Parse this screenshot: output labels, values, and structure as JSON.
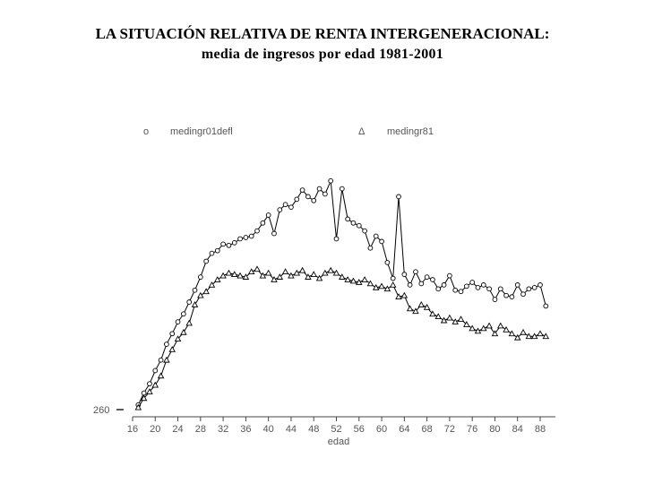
{
  "title": "LA SITUACIÓN RELATIVA DE RENTA INTERGENERACIONAL:",
  "subtitle": "media de ingresos por edad 1981-2001",
  "chart_data": {
    "type": "line",
    "xlabel": "edad",
    "ylabel": "",
    "x_ticks": [
      16,
      20,
      24,
      28,
      32,
      36,
      40,
      44,
      48,
      52,
      56,
      60,
      64,
      68,
      72,
      76,
      80,
      84,
      88
    ],
    "y_ticks": [
      260
    ],
    "xlim": [
      15,
      90
    ],
    "ylim": [
      230,
      2250
    ],
    "legend_position": "top",
    "grid": false,
    "series": [
      {
        "name": "medingr01defl",
        "marker": "circle",
        "color": "#000000",
        "x": [
          17,
          18,
          19,
          20,
          21,
          22,
          23,
          24,
          25,
          26,
          27,
          28,
          29,
          30,
          31,
          32,
          33,
          34,
          35,
          36,
          37,
          38,
          39,
          40,
          41,
          42,
          43,
          44,
          45,
          46,
          47,
          48,
          49,
          50,
          51,
          52,
          53,
          54,
          55,
          56,
          57,
          58,
          59,
          60,
          61,
          62,
          63,
          64,
          65,
          66,
          67,
          68,
          69,
          70,
          71,
          72,
          73,
          74,
          75,
          76,
          77,
          78,
          79,
          80,
          81,
          82,
          83,
          84,
          85,
          86,
          87,
          88,
          89
        ],
        "y": [
          300,
          390,
          460,
          560,
          640,
          760,
          840,
          930,
          990,
          1080,
          1170,
          1270,
          1390,
          1450,
          1470,
          1520,
          1510,
          1530,
          1560,
          1570,
          1580,
          1620,
          1680,
          1740,
          1600,
          1780,
          1820,
          1800,
          1860,
          1930,
          1880,
          1850,
          1940,
          1900,
          2000,
          1560,
          1940,
          1710,
          1680,
          1660,
          1620,
          1490,
          1580,
          1540,
          1380,
          1260,
          1880,
          1290,
          1210,
          1310,
          1220,
          1270,
          1250,
          1180,
          1210,
          1280,
          1170,
          1160,
          1200,
          1230,
          1190,
          1210,
          1180,
          1100,
          1180,
          1130,
          1120,
          1210,
          1140,
          1180,
          1190,
          1210,
          1050
        ]
      },
      {
        "name": "medingr81",
        "marker": "triangle",
        "color": "#000000",
        "x": [
          17,
          18,
          19,
          20,
          21,
          22,
          23,
          24,
          25,
          26,
          27,
          28,
          29,
          30,
          31,
          32,
          33,
          34,
          35,
          36,
          37,
          38,
          39,
          40,
          41,
          42,
          43,
          44,
          45,
          46,
          47,
          48,
          49,
          50,
          51,
          52,
          53,
          54,
          55,
          56,
          57,
          58,
          59,
          60,
          61,
          62,
          63,
          64,
          65,
          66,
          67,
          68,
          69,
          70,
          71,
          72,
          73,
          74,
          75,
          76,
          77,
          78,
          79,
          80,
          81,
          82,
          83,
          84,
          85,
          86,
          87,
          88,
          89
        ],
        "y": [
          280,
          350,
          400,
          450,
          520,
          640,
          720,
          800,
          850,
          920,
          1060,
          1130,
          1160,
          1210,
          1250,
          1280,
          1300,
          1290,
          1280,
          1270,
          1310,
          1330,
          1280,
          1300,
          1250,
          1270,
          1310,
          1280,
          1300,
          1320,
          1270,
          1290,
          1260,
          1300,
          1320,
          1300,
          1270,
          1250,
          1240,
          1230,
          1250,
          1220,
          1190,
          1200,
          1180,
          1210,
          1120,
          1130,
          1030,
          1010,
          1060,
          1040,
          990,
          970,
          940,
          960,
          930,
          950,
          910,
          880,
          860,
          880,
          900,
          840,
          900,
          870,
          840,
          810,
          850,
          820,
          820,
          840,
          820
        ]
      }
    ]
  }
}
